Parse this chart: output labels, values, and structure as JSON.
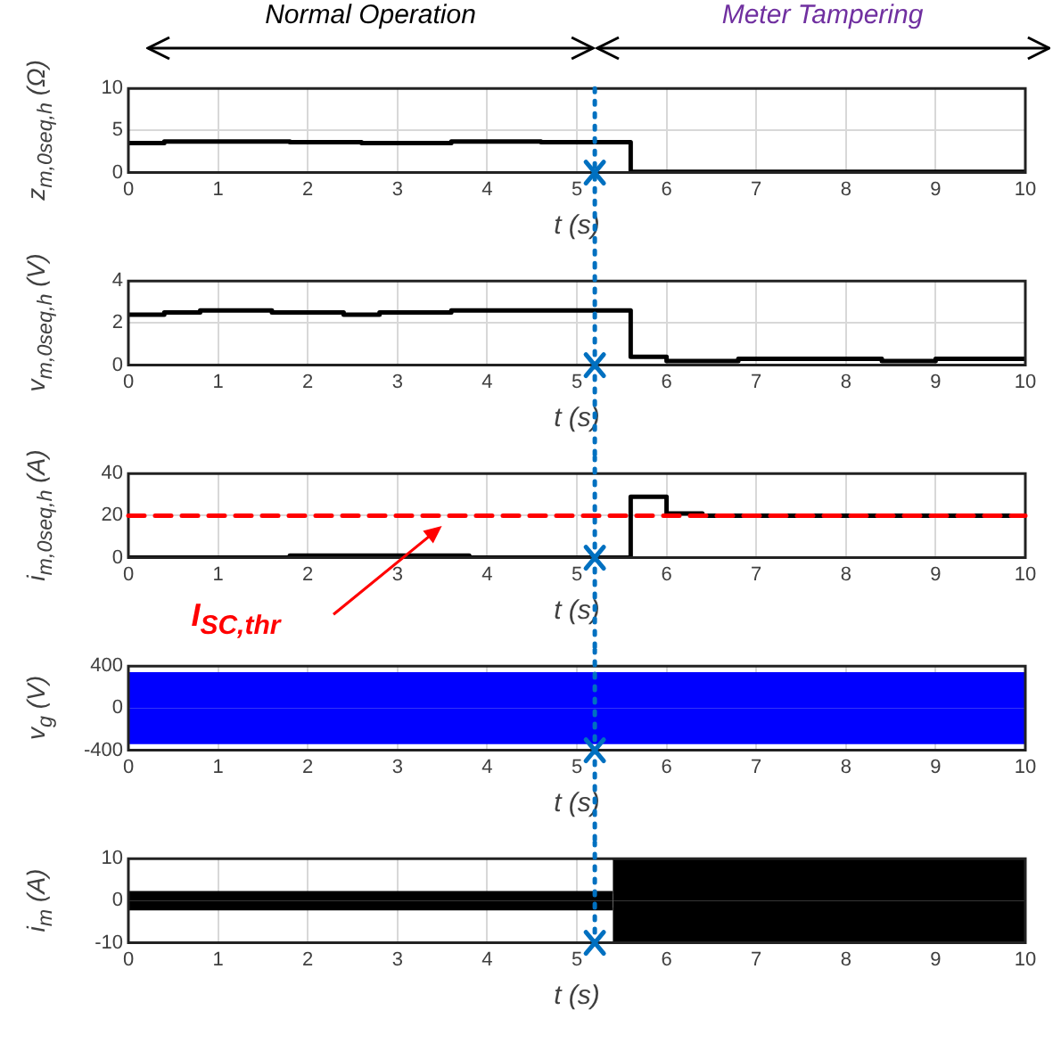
{
  "chart_data": [
    {
      "type": "step",
      "annotations": [
        "Normal Operation",
        "Meter Tampering"
      ],
      "xlabel": "t (s)",
      "ylabel": "z$_{m,0seq,h}$ (Ω)",
      "xlim": [
        0,
        10
      ],
      "xticks": [
        0,
        1,
        2,
        3,
        4,
        5,
        6,
        7,
        8,
        9,
        10
      ],
      "ylim": [
        0,
        10
      ],
      "yticks": [
        0,
        5,
        10
      ],
      "grid": true,
      "series": [
        {
          "color": "#000000",
          "x": [
            0,
            0.4,
            1.8,
            2.6,
            3.6,
            4.6,
            5.6,
            6,
            10
          ],
          "values": [
            3.5,
            3.7,
            3.6,
            3.5,
            3.7,
            3.6,
            0.1,
            0.1,
            0.1
          ]
        }
      ],
      "ref_lines": [
        {
          "axis": "x",
          "value": 5.2,
          "color": "#0070c0",
          "line_style": "dotted"
        }
      ]
    },
    {
      "type": "step",
      "xlabel": "t (s)",
      "ylabel": "v$_{m,0seq,h}$ (V)",
      "xlim": [
        0,
        10
      ],
      "xticks": [
        0,
        1,
        2,
        3,
        4,
        5,
        6,
        7,
        8,
        9,
        10
      ],
      "ylim": [
        0,
        4
      ],
      "yticks": [
        0,
        2,
        4
      ],
      "grid": true,
      "series": [
        {
          "color": "#000000",
          "x": [
            0,
            0.4,
            0.8,
            1.6,
            2.4,
            2.8,
            3.6,
            4.2,
            5.6,
            6,
            6.8,
            7.6,
            8.4,
            9,
            10
          ],
          "values": [
            2.4,
            2.5,
            2.6,
            2.5,
            2.4,
            2.5,
            2.6,
            2.6,
            0.4,
            0.2,
            0.3,
            0.3,
            0.2,
            0.3,
            0.3
          ]
        }
      ],
      "ref_lines": [
        {
          "axis": "x",
          "value": 5.2,
          "color": "#0070c0",
          "line_style": "dotted"
        }
      ]
    },
    {
      "type": "step",
      "xlabel": "t (s)",
      "ylabel": "i$_{m,0seq,h}$ (A)",
      "xlim": [
        0,
        10
      ],
      "xticks": [
        0,
        1,
        2,
        3,
        4,
        5,
        6,
        7,
        8,
        9,
        10
      ],
      "ylim": [
        0,
        40
      ],
      "yticks": [
        0,
        20,
        40
      ],
      "grid": true,
      "series": [
        {
          "color": "#000000",
          "x": [
            0,
            1.8,
            3.8,
            5.6,
            6,
            6.4,
            10
          ],
          "values": [
            0,
            1,
            0,
            29,
            21,
            20,
            20
          ]
        }
      ],
      "ref_lines": [
        {
          "axis": "x",
          "value": 5.2,
          "color": "#0070c0",
          "line_style": "dotted"
        },
        {
          "axis": "y",
          "value": 20,
          "label": "I$_{SC,thr}$",
          "color": "#ff0000",
          "line_style": "dashed"
        }
      ]
    },
    {
      "type": "area",
      "xlabel": "t (s)",
      "ylabel": "v$_{g}$ (V)",
      "xlim": [
        0,
        10
      ],
      "xticks": [
        0,
        1,
        2,
        3,
        4,
        5,
        6,
        7,
        8,
        9,
        10
      ],
      "ylim": [
        -400,
        400
      ],
      "yticks": [
        -400,
        0,
        400
      ],
      "grid": true,
      "series": [
        {
          "color": "#0000ff",
          "x": [
            0,
            10
          ],
          "values": [
            330,
            330
          ]
        },
        {
          "color": "#0000ff",
          "x": [
            0,
            10
          ],
          "values": [
            -330,
            -330
          ]
        }
      ],
      "ref_lines": [
        {
          "axis": "x",
          "value": 5.2,
          "color": "#0070c0",
          "line_style": "dotted"
        }
      ]
    },
    {
      "type": "area",
      "xlabel": "t (s)",
      "ylabel": "i$_{m}$ (A)",
      "xlim": [
        0,
        10
      ],
      "xticks": [
        0,
        1,
        2,
        3,
        4,
        5,
        6,
        7,
        8,
        9,
        10
      ],
      "ylim": [
        -10,
        10
      ],
      "yticks": [
        -10,
        0,
        10
      ],
      "grid": true,
      "series": [
        {
          "color": "#000000",
          "x": [
            0,
            5.4
          ],
          "values": [
            2,
            2
          ]
        },
        {
          "color": "#000000",
          "x": [
            0,
            5.4
          ],
          "values": [
            -2,
            -2
          ]
        },
        {
          "color": "#000000",
          "x": [
            5.4,
            10
          ],
          "values": [
            10,
            10
          ]
        },
        {
          "color": "#000000",
          "x": [
            5.4,
            10
          ],
          "values": [
            -10,
            -10
          ]
        }
      ],
      "ref_lines": [
        {
          "axis": "x",
          "value": 5.2,
          "color": "#0070c0",
          "line_style": "dotted"
        }
      ]
    }
  ]
}
